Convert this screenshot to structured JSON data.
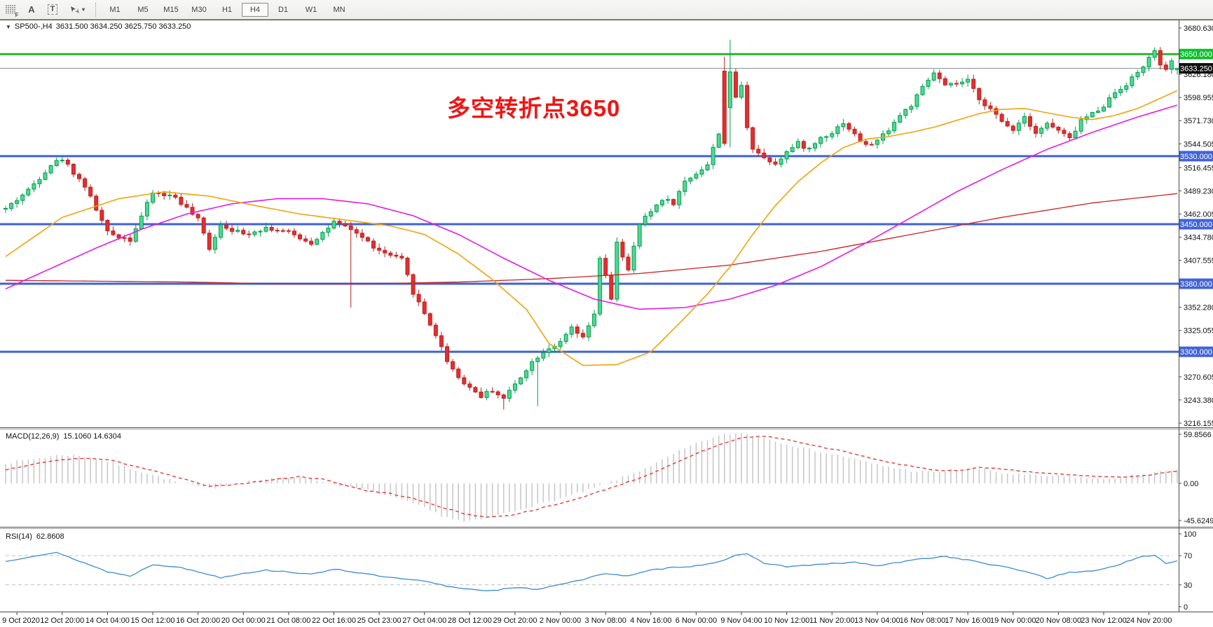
{
  "toolbar": {
    "tools": [
      {
        "name": "grid-template-tool",
        "glyph": "F"
      },
      {
        "name": "font-tool",
        "glyph": "A"
      },
      {
        "name": "text-label-tool",
        "glyph": "T"
      },
      {
        "name": "cursor-tool",
        "glyph": "▾"
      }
    ],
    "timeframes": [
      "M1",
      "M5",
      "M15",
      "M30",
      "H1",
      "H4",
      "D1",
      "W1",
      "MN"
    ],
    "active_timeframe": "H4"
  },
  "header": {
    "symbol_menu_icon": "▼",
    "symbol": "SP500-,H4",
    "ohlc_text": "3631.500 3634.250 3625.750 3633.250"
  },
  "annotation": {
    "text": "多空转折点3650",
    "color": "#ee1515"
  },
  "macd_panel": {
    "title": "MACD(12,26,9)",
    "values": "15.1060 14.6304",
    "axis_labels": [
      "59.8566",
      "0.00",
      "-45.6249"
    ]
  },
  "rsi_panel": {
    "title": "RSI(14)",
    "value": "62.8608",
    "axis_labels": [
      "100",
      "70",
      "30",
      "0"
    ]
  },
  "price_axis": {
    "ticks": [
      3680.63,
      3626.18,
      3598.955,
      3571.73,
      3544.505,
      3516.455,
      3489.23,
      3462.005,
      3434.78,
      3407.555,
      3352.28,
      3325.055,
      3270.605,
      3243.38,
      3216.155
    ],
    "badges": [
      {
        "value": "3650.000",
        "price": 3650,
        "type": "green"
      },
      {
        "value": "3633.250",
        "price": 3633.25,
        "type": "black"
      },
      {
        "value": "3530.000",
        "price": 3530,
        "type": "blue"
      },
      {
        "value": "3450.000",
        "price": 3450,
        "type": "blue"
      },
      {
        "value": "3380.000",
        "price": 3380,
        "type": "blue"
      },
      {
        "value": "3300.000",
        "price": 3300,
        "type": "blue"
      }
    ]
  },
  "colors": {
    "bull_body": "#53d593",
    "bull_edge": "#00a04e",
    "bear_body": "#e12f2f",
    "bear_edge": "#c02020",
    "hline_blue": "#3e62d9",
    "hline_green": "#2db32d",
    "current_line": "#8c9196",
    "ma_fast": "#f0a30a",
    "ma_mid": "#e51be5",
    "ma_slow": "#cc2222",
    "macd_hist": "#c9c9c9",
    "macd_signal": "#e03030",
    "rsi_line": "#3d8bd4",
    "rsi_level": "#c0c0c0",
    "badge_green": "#0ebf2e",
    "badge_blue": "#4263d7",
    "badge_black": "#101010"
  },
  "chart_data": {
    "type": "candlestick",
    "symbol": "SP500-",
    "timeframe": "H4",
    "title": "SP500- H4 with MACD(12,26,9) and RSI(14)",
    "num_candles": 208,
    "ylim": [
      3216.155,
      3680.63
    ],
    "current_price": 3633.25,
    "last_candle_ohlc": {
      "open": 3631.5,
      "high": 3634.25,
      "low": 3625.75,
      "close": 3633.25
    },
    "hlines": [
      {
        "price": 3650,
        "color": "green",
        "label": "3650.000"
      },
      {
        "price": 3530,
        "color": "blue",
        "label": "3530.000"
      },
      {
        "price": 3450,
        "color": "blue",
        "label": "3450.000"
      },
      {
        "price": 3380,
        "color": "blue",
        "label": "3380.000"
      },
      {
        "price": 3300,
        "color": "blue",
        "label": "3300.000"
      }
    ],
    "close_waypoints": [
      [
        0,
        3468
      ],
      [
        4,
        3490
      ],
      [
        8,
        3520
      ],
      [
        10,
        3527
      ],
      [
        14,
        3495
      ],
      [
        18,
        3440
      ],
      [
        22,
        3432
      ],
      [
        26,
        3487
      ],
      [
        30,
        3482
      ],
      [
        34,
        3455
      ],
      [
        36,
        3422
      ],
      [
        38,
        3450
      ],
      [
        42,
        3438
      ],
      [
        46,
        3446
      ],
      [
        50,
        3440
      ],
      [
        54,
        3428
      ],
      [
        58,
        3452
      ],
      [
        62,
        3440
      ],
      [
        66,
        3418
      ],
      [
        70,
        3408
      ],
      [
        72,
        3370
      ],
      [
        74,
        3345
      ],
      [
        76,
        3320
      ],
      [
        78,
        3290
      ],
      [
        80,
        3270
      ],
      [
        82,
        3258
      ],
      [
        84,
        3248
      ],
      [
        86,
        3255
      ],
      [
        88,
        3245
      ],
      [
        90,
        3262
      ],
      [
        92,
        3280
      ],
      [
        94,
        3295
      ],
      [
        96,
        3305
      ],
      [
        98,
        3310
      ],
      [
        100,
        3328
      ],
      [
        102,
        3315
      ],
      [
        104,
        3345
      ],
      [
        105,
        3408
      ],
      [
        106,
        3390
      ],
      [
        107,
        3360
      ],
      [
        108,
        3430
      ],
      [
        110,
        3395
      ],
      [
        112,
        3450
      ],
      [
        114,
        3465
      ],
      [
        116,
        3480
      ],
      [
        118,
        3475
      ],
      [
        120,
        3500
      ],
      [
        122,
        3510
      ],
      [
        124,
        3520
      ],
      [
        126,
        3558
      ],
      [
        127,
        3545
      ],
      [
        128,
        3629
      ],
      [
        129,
        3600
      ],
      [
        130,
        3612
      ],
      [
        131,
        3565
      ],
      [
        132,
        3540
      ],
      [
        134,
        3528
      ],
      [
        136,
        3522
      ],
      [
        138,
        3535
      ],
      [
        140,
        3545
      ],
      [
        142,
        3538
      ],
      [
        144,
        3552
      ],
      [
        146,
        3558
      ],
      [
        148,
        3570
      ],
      [
        150,
        3555
      ],
      [
        152,
        3542
      ],
      [
        154,
        3548
      ],
      [
        156,
        3562
      ],
      [
        158,
        3578
      ],
      [
        160,
        3590
      ],
      [
        162,
        3610
      ],
      [
        164,
        3628
      ],
      [
        166,
        3612
      ],
      [
        168,
        3615
      ],
      [
        170,
        3618
      ],
      [
        172,
        3598
      ],
      [
        174,
        3585
      ],
      [
        176,
        3570
      ],
      [
        178,
        3562
      ],
      [
        180,
        3577
      ],
      [
        182,
        3558
      ],
      [
        184,
        3568
      ],
      [
        186,
        3560
      ],
      [
        188,
        3550
      ],
      [
        190,
        3572
      ],
      [
        192,
        3580
      ],
      [
        194,
        3590
      ],
      [
        196,
        3605
      ],
      [
        198,
        3615
      ],
      [
        200,
        3628
      ],
      [
        202,
        3645
      ],
      [
        203,
        3652
      ],
      [
        204,
        3638
      ],
      [
        205,
        3630
      ],
      [
        206,
        3640
      ],
      [
        207,
        3633.25
      ]
    ],
    "special_candles": {
      "61": {
        "low": 3352
      },
      "88": {
        "low": 3232
      },
      "94": {
        "low": 3236
      },
      "127": {
        "open": 3630,
        "high": 3647,
        "close": 3545
      },
      "128": {
        "open": 3587,
        "high": 3667,
        "close": 3629
      },
      "203": {
        "high": 3658
      },
      "207": {
        "open": 3631.5,
        "high": 3634.25,
        "low": 3625.75,
        "close": 3633.25
      }
    },
    "ma_fast_waypoints": [
      [
        0,
        3412
      ],
      [
        10,
        3458
      ],
      [
        20,
        3480
      ],
      [
        28,
        3488
      ],
      [
        36,
        3483
      ],
      [
        44,
        3472
      ],
      [
        52,
        3462
      ],
      [
        60,
        3455
      ],
      [
        68,
        3448
      ],
      [
        74,
        3438
      ],
      [
        80,
        3415
      ],
      [
        86,
        3385
      ],
      [
        92,
        3350
      ],
      [
        96,
        3310
      ],
      [
        102,
        3284
      ],
      [
        108,
        3285
      ],
      [
        114,
        3300
      ],
      [
        120,
        3340
      ],
      [
        124,
        3368
      ],
      [
        128,
        3400
      ],
      [
        132,
        3438
      ],
      [
        136,
        3472
      ],
      [
        140,
        3500
      ],
      [
        144,
        3522
      ],
      [
        148,
        3540
      ],
      [
        152,
        3550
      ],
      [
        156,
        3553
      ],
      [
        160,
        3558
      ],
      [
        164,
        3564
      ],
      [
        168,
        3572
      ],
      [
        172,
        3580
      ],
      [
        176,
        3585
      ],
      [
        180,
        3586
      ],
      [
        184,
        3581
      ],
      [
        188,
        3576
      ],
      [
        192,
        3573
      ],
      [
        196,
        3578
      ],
      [
        200,
        3586
      ],
      [
        204,
        3598
      ],
      [
        207,
        3607
      ]
    ],
    "ma_mid_waypoints": [
      [
        0,
        3374
      ],
      [
        8,
        3398
      ],
      [
        16,
        3422
      ],
      [
        24,
        3444
      ],
      [
        32,
        3462
      ],
      [
        40,
        3474
      ],
      [
        48,
        3480
      ],
      [
        56,
        3480
      ],
      [
        64,
        3474
      ],
      [
        72,
        3460
      ],
      [
        80,
        3438
      ],
      [
        88,
        3410
      ],
      [
        96,
        3384
      ],
      [
        104,
        3362
      ],
      [
        112,
        3350
      ],
      [
        120,
        3352
      ],
      [
        128,
        3362
      ],
      [
        136,
        3378
      ],
      [
        144,
        3400
      ],
      [
        152,
        3428
      ],
      [
        160,
        3458
      ],
      [
        168,
        3488
      ],
      [
        176,
        3514
      ],
      [
        184,
        3538
      ],
      [
        192,
        3558
      ],
      [
        200,
        3576
      ],
      [
        207,
        3590
      ]
    ],
    "ma_slow_waypoints": [
      [
        0,
        3384
      ],
      [
        16,
        3383
      ],
      [
        32,
        3382
      ],
      [
        48,
        3380
      ],
      [
        64,
        3380
      ],
      [
        80,
        3382
      ],
      [
        96,
        3386
      ],
      [
        112,
        3392
      ],
      [
        128,
        3402
      ],
      [
        144,
        3418
      ],
      [
        160,
        3438
      ],
      [
        176,
        3458
      ],
      [
        192,
        3475
      ],
      [
        207,
        3486
      ]
    ],
    "macd": {
      "ylim": [
        -45.6249,
        59.8566
      ],
      "hist_waypoints": [
        [
          0,
          24
        ],
        [
          6,
          30
        ],
        [
          10,
          34
        ],
        [
          14,
          32
        ],
        [
          18,
          26
        ],
        [
          22,
          18
        ],
        [
          26,
          10
        ],
        [
          31,
          0
        ],
        [
          36,
          -6
        ],
        [
          42,
          2
        ],
        [
          48,
          6
        ],
        [
          52,
          8
        ],
        [
          56,
          2
        ],
        [
          60,
          -4
        ],
        [
          64,
          -8
        ],
        [
          68,
          -16
        ],
        [
          72,
          -24
        ],
        [
          77,
          -38
        ],
        [
          81,
          -45.6
        ],
        [
          85,
          -42
        ],
        [
          89,
          -34
        ],
        [
          93,
          -27
        ],
        [
          98,
          -18
        ],
        [
          103,
          -8
        ],
        [
          107,
          2
        ],
        [
          111,
          12
        ],
        [
          115,
          24
        ],
        [
          119,
          38
        ],
        [
          123,
          50
        ],
        [
          127,
          58
        ],
        [
          130,
          59.8
        ],
        [
          134,
          54
        ],
        [
          138,
          47
        ],
        [
          142,
          40
        ],
        [
          148,
          32
        ],
        [
          154,
          22
        ],
        [
          160,
          15
        ],
        [
          164,
          13
        ],
        [
          168,
          16
        ],
        [
          172,
          18
        ],
        [
          176,
          12
        ],
        [
          182,
          9
        ],
        [
          188,
          8
        ],
        [
          193,
          5
        ],
        [
          198,
          8
        ],
        [
          202,
          12
        ],
        [
          207,
          15.1
        ]
      ],
      "signal_waypoints": [
        [
          0,
          16
        ],
        [
          6,
          24
        ],
        [
          10,
          28
        ],
        [
          14,
          30
        ],
        [
          18,
          28
        ],
        [
          22,
          22
        ],
        [
          26,
          15
        ],
        [
          31,
          6
        ],
        [
          36,
          -4
        ],
        [
          42,
          0
        ],
        [
          48,
          5
        ],
        [
          52,
          8
        ],
        [
          56,
          5
        ],
        [
          60,
          -2
        ],
        [
          64,
          -9
        ],
        [
          68,
          -12
        ],
        [
          72,
          -18
        ],
        [
          77,
          -28
        ],
        [
          81,
          -36
        ],
        [
          85,
          -40
        ],
        [
          89,
          -38
        ],
        [
          93,
          -32
        ],
        [
          98,
          -24
        ],
        [
          103,
          -14
        ],
        [
          107,
          -5
        ],
        [
          111,
          4
        ],
        [
          115,
          14
        ],
        [
          119,
          26
        ],
        [
          123,
          38
        ],
        [
          127,
          48
        ],
        [
          130,
          54
        ],
        [
          134,
          56
        ],
        [
          138,
          52
        ],
        [
          142,
          46
        ],
        [
          148,
          38
        ],
        [
          154,
          28
        ],
        [
          160,
          20
        ],
        [
          164,
          16
        ],
        [
          168,
          15
        ],
        [
          172,
          19
        ],
        [
          176,
          17
        ],
        [
          182,
          13
        ],
        [
          188,
          10
        ],
        [
          193,
          8
        ],
        [
          198,
          7
        ],
        [
          202,
          10
        ],
        [
          207,
          14.63
        ]
      ],
      "current_values": [
        15.106,
        14.6304
      ]
    },
    "rsi": {
      "ylim": [
        0,
        100
      ],
      "levels": [
        70,
        30
      ],
      "waypoints": [
        [
          0,
          62
        ],
        [
          5,
          70
        ],
        [
          9,
          74
        ],
        [
          14,
          60
        ],
        [
          18,
          48
        ],
        [
          22,
          42
        ],
        [
          26,
          58
        ],
        [
          30,
          55
        ],
        [
          34,
          48
        ],
        [
          38,
          40
        ],
        [
          42,
          46
        ],
        [
          46,
          50
        ],
        [
          50,
          48
        ],
        [
          54,
          44
        ],
        [
          58,
          52
        ],
        [
          62,
          47
        ],
        [
          66,
          42
        ],
        [
          70,
          38
        ],
        [
          74,
          35
        ],
        [
          78,
          28
        ],
        [
          82,
          24
        ],
        [
          86,
          22
        ],
        [
          90,
          26
        ],
        [
          94,
          24
        ],
        [
          98,
          31
        ],
        [
          102,
          37
        ],
        [
          106,
          46
        ],
        [
          110,
          42
        ],
        [
          114,
          50
        ],
        [
          118,
          54
        ],
        [
          122,
          56
        ],
        [
          126,
          62
        ],
        [
          129,
          70
        ],
        [
          131,
          72
        ],
        [
          134,
          60
        ],
        [
          138,
          55
        ],
        [
          142,
          57
        ],
        [
          146,
          59
        ],
        [
          150,
          61
        ],
        [
          154,
          56
        ],
        [
          158,
          61
        ],
        [
          162,
          66
        ],
        [
          166,
          69
        ],
        [
          170,
          64
        ],
        [
          174,
          58
        ],
        [
          178,
          52
        ],
        [
          181,
          47
        ],
        [
          184,
          39
        ],
        [
          188,
          47
        ],
        [
          192,
          49
        ],
        [
          196,
          56
        ],
        [
          199,
          64
        ],
        [
          201,
          69
        ],
        [
          203,
          70
        ],
        [
          205,
          60
        ],
        [
          206,
          61
        ],
        [
          207,
          62.86
        ]
      ],
      "current_value": 62.8608
    },
    "x_labels": [
      "9 Oct 2020",
      "12 Oct 20:00",
      "14 Oct 04:00",
      "15 Oct 12:00",
      "16 Oct 20:00",
      "20 Oct 00:00",
      "21 Oct 08:00",
      "22 Oct 16:00",
      "25 Oct 23:00",
      "27 Oct 04:00",
      "28 Oct 12:00",
      "29 Oct 20:00",
      "2 Nov 00:00",
      "3 Nov 08:00",
      "4 Nov 16:00",
      "6 Nov 00:00",
      "9 Nov 04:00",
      "10 Nov 12:00",
      "11 Nov 20:00",
      "13 Nov 04:00",
      "16 Nov 08:00",
      "17 Nov 16:00",
      "19 Nov 00:00",
      "20 Nov 08:00",
      "23 Nov 12:00",
      "24 Nov 20:00"
    ],
    "legend_position": "none",
    "grid": false
  }
}
